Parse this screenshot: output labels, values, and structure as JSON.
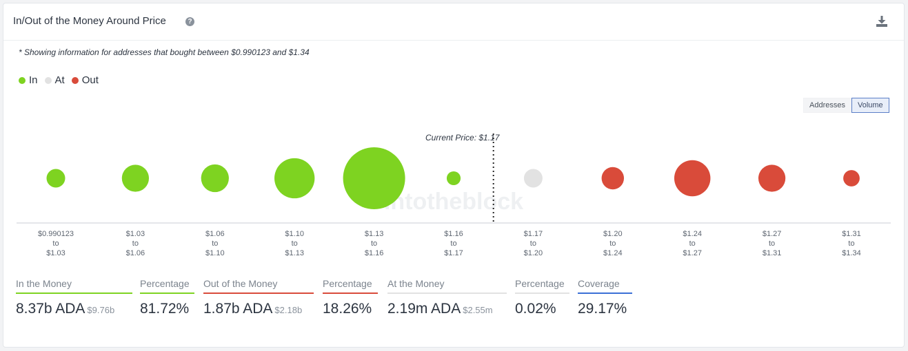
{
  "header": {
    "title": "In/Out of the Money Around Price",
    "help_icon": "question-icon",
    "download_icon": "download-icon"
  },
  "note": "* Showing information for addresses that bought between $0.990123 and $1.34",
  "legend": [
    {
      "label": "In",
      "color": "#7ed321"
    },
    {
      "label": "At",
      "color": "#e2e2e2"
    },
    {
      "label": "Out",
      "color": "#d94b3a"
    }
  ],
  "toggle": {
    "options": [
      "Addresses",
      "Volume"
    ],
    "selected": "Volume"
  },
  "colors": {
    "in": "#7ed321",
    "at": "#e2e2e2",
    "out": "#d94b3a",
    "coverage": "#3a6fd6"
  },
  "chart_data": {
    "type": "scatter",
    "current_price_label": "Current Price: $1.17",
    "current_price_after_index": 5,
    "watermark": "intotheblock",
    "categories": [
      {
        "from": "$0.990123",
        "to": "$1.03",
        "status": "in",
        "relative_volume": 0.09
      },
      {
        "from": "$1.03",
        "to": "$1.06",
        "status": "in",
        "relative_volume": 0.19
      },
      {
        "from": "$1.06",
        "to": "$1.10",
        "status": "in",
        "relative_volume": 0.2
      },
      {
        "from": "$1.10",
        "to": "$1.13",
        "status": "in",
        "relative_volume": 0.42
      },
      {
        "from": "$1.13",
        "to": "$1.16",
        "status": "in",
        "relative_volume": 1.0
      },
      {
        "from": "$1.16",
        "to": "$1.17",
        "status": "in",
        "relative_volume": 0.05
      },
      {
        "from": "$1.17",
        "to": "$1.20",
        "status": "at",
        "relative_volume": 0.09
      },
      {
        "from": "$1.20",
        "to": "$1.24",
        "status": "out",
        "relative_volume": 0.13
      },
      {
        "from": "$1.24",
        "to": "$1.27",
        "status": "out",
        "relative_volume": 0.34
      },
      {
        "from": "$1.27",
        "to": "$1.31",
        "status": "out",
        "relative_volume": 0.19
      },
      {
        "from": "$1.31",
        "to": "$1.34",
        "status": "out",
        "relative_volume": 0.07
      }
    ],
    "range_separator": "to"
  },
  "stats": [
    {
      "label": "In the Money",
      "value": "8.37b ADA",
      "sub": "$9.76b",
      "line": "in"
    },
    {
      "label": "Percentage",
      "value": "81.72%",
      "sub": "",
      "line": "in"
    },
    {
      "label": "Out of the Money",
      "value": "1.87b ADA",
      "sub": "$2.18b",
      "line": "out"
    },
    {
      "label": "Percentage",
      "value": "18.26%",
      "sub": "",
      "line": "out"
    },
    {
      "label": "At the Money",
      "value": "2.19m ADA",
      "sub": "$2.55m",
      "line": "at"
    },
    {
      "label": "Percentage",
      "value": "0.02%",
      "sub": "",
      "line": "at"
    },
    {
      "label": "Coverage",
      "value": "29.17%",
      "sub": "",
      "line": "coverage"
    }
  ]
}
